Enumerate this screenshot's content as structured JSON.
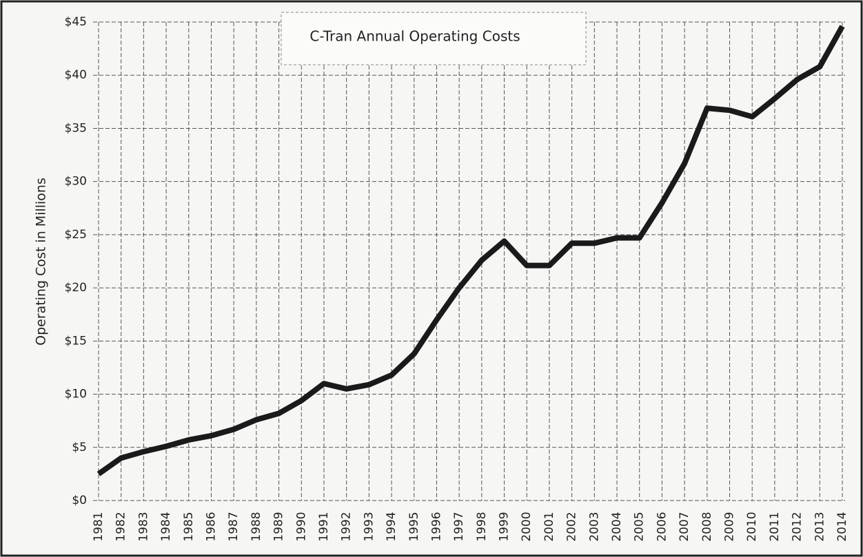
{
  "chart_data": {
    "type": "line",
    "title": "C-Tran Annual Operating Costs",
    "y_label": "Operating Cost in Millions",
    "categories": [
      "1981",
      "1982",
      "1983",
      "1984",
      "1985",
      "1986",
      "1987",
      "1988",
      "1989",
      "1990",
      "1991",
      "1992",
      "1993",
      "1994",
      "1995",
      "1996",
      "1997",
      "1998",
      "1999",
      "2000",
      "2001",
      "2002",
      "2003",
      "2004",
      "2005",
      "2006",
      "2007",
      "2008",
      "2009",
      "2010",
      "2011",
      "2012",
      "2013",
      "2014"
    ],
    "series": [
      {
        "name": "Operating Cost",
        "color": "#1a1a1a",
        "values": [
          2.5,
          4.0,
          4.6,
          5.1,
          5.7,
          6.1,
          6.7,
          7.6,
          8.2,
          9.4,
          11.0,
          10.5,
          10.9,
          11.8,
          13.8,
          17.0,
          20.0,
          22.6,
          24.4,
          22.1,
          22.1,
          24.2,
          24.2,
          24.7,
          24.7,
          28.0,
          31.7,
          36.9,
          36.7,
          36.1,
          37.8,
          39.6,
          40.8,
          44.6
        ]
      }
    ],
    "ylim": [
      0,
      45
    ],
    "yticks": [
      {
        "value": 0,
        "label": "$0"
      },
      {
        "value": 5,
        "label": "$5"
      },
      {
        "value": 10,
        "label": "$10"
      },
      {
        "value": 15,
        "label": "$15"
      },
      {
        "value": 20,
        "label": "$20"
      },
      {
        "value": 25,
        "label": "$25"
      },
      {
        "value": 30,
        "label": "$30"
      },
      {
        "value": 35,
        "label": "$35"
      },
      {
        "value": 40,
        "label": "$40"
      },
      {
        "value": 45,
        "label": "$45"
      }
    ],
    "grid": true
  }
}
